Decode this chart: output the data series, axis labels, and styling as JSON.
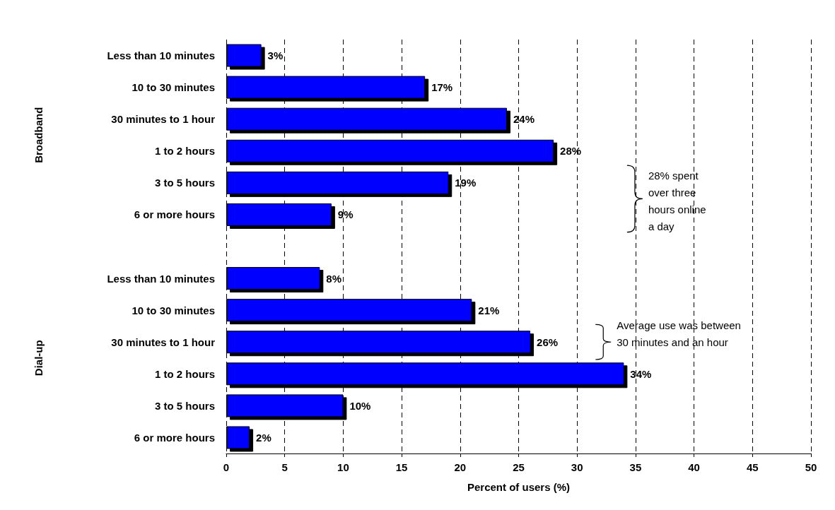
{
  "chart_data": {
    "type": "bar",
    "orientation": "horizontal",
    "xlabel": "Percent of users (%)",
    "categories": [
      "Less than 10 minutes",
      "10 to 30 minutes",
      "30 minutes to 1 hour",
      "1 to 2 hours",
      "3 to 5 hours",
      "6 or more hours",
      null,
      "Less than 10 minutes",
      "10 to 30 minutes",
      "30 minutes to 1 hour",
      "1 to 2 hours",
      "3 to 5 hours",
      "6 or more hours"
    ],
    "values": [
      3,
      17,
      24,
      28,
      19,
      9,
      null,
      8,
      21,
      26,
      34,
      10,
      2
    ],
    "value_labels": [
      "3%",
      "17%",
      "24%",
      "28%",
      "19%",
      "9%",
      null,
      "8%",
      "21%",
      "26%",
      "34%",
      "10%",
      "2%"
    ],
    "color": "#0000ff",
    "xlim": [
      0,
      50
    ],
    "xticks": [
      0,
      5,
      10,
      15,
      20,
      25,
      30,
      35,
      40,
      45,
      50
    ],
    "grid": "x",
    "annotations": [
      "Broadband",
      "Dial-up",
      "28% spent over three hours online a day",
      "Average use was between 30 minutes and an hour"
    ]
  }
}
